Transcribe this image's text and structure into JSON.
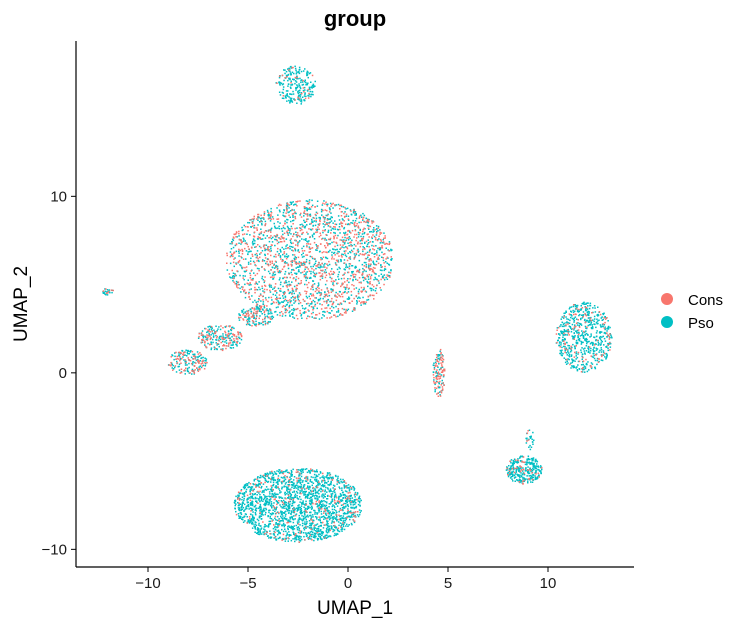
{
  "chart_data": {
    "type": "scatter",
    "title": "group",
    "xlabel": "UMAP_1",
    "ylabel": "UMAP_2",
    "xlim": [
      -13.6,
      14.3
    ],
    "ylim": [
      -11.0,
      18.8
    ],
    "x_ticks": [
      -10,
      -5,
      0,
      5,
      10
    ],
    "y_ticks": [
      -10,
      0,
      10
    ],
    "x_tick_labels": [
      "−10",
      "−5",
      "0",
      "5",
      "10"
    ],
    "y_tick_labels": [
      "−10",
      "0",
      "10"
    ],
    "grid": false,
    "legend_placement": "right",
    "series": [
      {
        "name": "Cons",
        "color": "#F8766D"
      },
      {
        "name": "Pso",
        "color": "#00BFC4"
      }
    ],
    "clusters": [
      {
        "id": "top-island",
        "cx": -2.6,
        "cy": 16.3,
        "rx": 1.0,
        "ry": 1.1,
        "n": 240,
        "cons_frac": 0.12
      },
      {
        "id": "tiny-left",
        "cx": -12.0,
        "cy": 4.6,
        "rx": 0.3,
        "ry": 0.2,
        "n": 25,
        "cons_frac": 0.1
      },
      {
        "id": "big-center",
        "cx": -1.9,
        "cy": 6.4,
        "rx": 4.2,
        "ry": 3.4,
        "n": 2200,
        "cons_frac": 0.42
      },
      {
        "id": "tail-1",
        "cx": -4.6,
        "cy": 3.2,
        "rx": 0.9,
        "ry": 0.55,
        "n": 150,
        "cons_frac": 0.4
      },
      {
        "id": "tail-2",
        "cx": -6.4,
        "cy": 2.0,
        "rx": 1.1,
        "ry": 0.75,
        "n": 220,
        "cons_frac": 0.4
      },
      {
        "id": "tail-3",
        "cx": -8.0,
        "cy": 0.6,
        "rx": 1.0,
        "ry": 0.7,
        "n": 180,
        "cons_frac": 0.45
      },
      {
        "id": "small-vertical",
        "cx": 4.55,
        "cy": 0.0,
        "rx": 0.3,
        "ry": 1.4,
        "n": 130,
        "cons_frac": 0.6
      },
      {
        "id": "right-blob",
        "cx": 11.8,
        "cy": 2.0,
        "rx": 1.4,
        "ry": 2.0,
        "n": 650,
        "cons_frac": 0.15
      },
      {
        "id": "lower-right",
        "cx": 8.8,
        "cy": -5.5,
        "rx": 0.9,
        "ry": 0.8,
        "n": 300,
        "cons_frac": 0.12
      },
      {
        "id": "lower-right-spur",
        "cx": 9.1,
        "cy": -3.8,
        "rx": 0.2,
        "ry": 0.6,
        "n": 25,
        "cons_frac": 0.1
      },
      {
        "id": "bottom-blob",
        "cx": -2.5,
        "cy": -7.5,
        "rx": 3.2,
        "ry": 2.1,
        "n": 2000,
        "cons_frac": 0.1
      }
    ]
  }
}
